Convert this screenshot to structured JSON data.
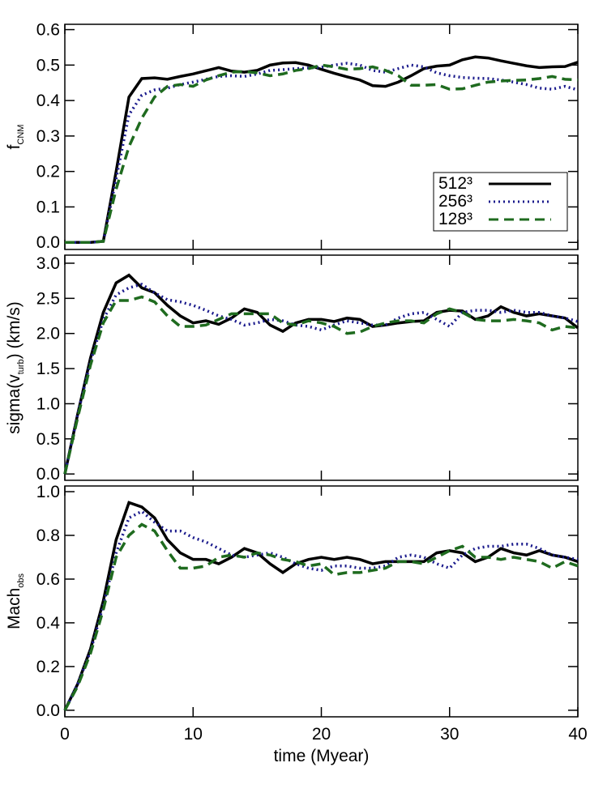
{
  "chart_data": [
    {
      "type": "line",
      "ylabel": {
        "text": "f",
        "sub": "CNM"
      },
      "x": [
        0,
        1,
        2,
        3,
        4,
        5,
        6,
        7,
        8,
        9,
        10,
        11,
        12,
        13,
        14,
        15,
        16,
        17,
        18,
        19,
        20,
        21,
        22,
        23,
        24,
        25,
        26,
        27,
        28,
        29,
        30,
        31,
        32,
        33,
        34,
        35,
        36,
        37,
        38,
        39,
        40
      ],
      "xlim": [
        0,
        40
      ],
      "ylim": [
        -0.02,
        0.615
      ],
      "yticks": [
        {
          "value": 0,
          "label": "0.0"
        },
        {
          "value": 0.1,
          "label": "0.1"
        },
        {
          "value": 0.2,
          "label": "0.2"
        },
        {
          "value": 0.3,
          "label": "0.3"
        },
        {
          "value": 0.4,
          "label": "0.4"
        },
        {
          "value": 0.5,
          "label": "0.5"
        },
        {
          "value": 0.6,
          "label": "0.6"
        }
      ],
      "legend": "lower right",
      "series": [
        {
          "name": "512³",
          "color": "#000000",
          "dash": "solid",
          "values": [
            0,
            0,
            0,
            0.003,
            0.2,
            0.41,
            0.462,
            0.464,
            0.46,
            0.468,
            0.475,
            0.484,
            0.493,
            0.483,
            0.48,
            0.485,
            0.5,
            0.506,
            0.507,
            0.5,
            0.488,
            0.477,
            0.467,
            0.458,
            0.442,
            0.44,
            0.452,
            0.47,
            0.49,
            0.497,
            0.5,
            0.515,
            0.523,
            0.52,
            0.512,
            0.505,
            0.498,
            0.493,
            0.495,
            0.496,
            0.508
          ]
        },
        {
          "name": "256³",
          "color": "#1a1a8c",
          "dash": "dotted",
          "values": [
            0,
            0,
            0,
            0.003,
            0.18,
            0.36,
            0.415,
            0.43,
            0.435,
            0.445,
            0.452,
            0.46,
            0.468,
            0.47,
            0.468,
            0.475,
            0.485,
            0.487,
            0.49,
            0.492,
            0.494,
            0.5,
            0.505,
            0.5,
            0.485,
            0.48,
            0.49,
            0.5,
            0.495,
            0.478,
            0.47,
            0.465,
            0.463,
            0.462,
            0.458,
            0.452,
            0.445,
            0.435,
            0.432,
            0.44,
            0.43
          ]
        },
        {
          "name": "128³",
          "color": "#1f6b1f",
          "dash": "dashed",
          "values": [
            0,
            0,
            0,
            0.003,
            0.15,
            0.27,
            0.35,
            0.41,
            0.44,
            0.445,
            0.44,
            0.458,
            0.47,
            0.48,
            0.482,
            0.478,
            0.47,
            0.475,
            0.485,
            0.49,
            0.5,
            0.495,
            0.488,
            0.49,
            0.495,
            0.485,
            0.47,
            0.443,
            0.443,
            0.445,
            0.432,
            0.433,
            0.443,
            0.452,
            0.455,
            0.457,
            0.458,
            0.462,
            0.468,
            0.46,
            0.458
          ]
        }
      ]
    },
    {
      "type": "line",
      "ylabel": {
        "text": "sigma(v",
        "sub": "turb",
        "after": ") (km/s)"
      },
      "x": [
        0,
        1,
        2,
        3,
        4,
        5,
        6,
        7,
        8,
        9,
        10,
        11,
        12,
        13,
        14,
        15,
        16,
        17,
        18,
        19,
        20,
        21,
        22,
        23,
        24,
        25,
        26,
        27,
        28,
        29,
        30,
        31,
        32,
        33,
        34,
        35,
        36,
        37,
        38,
        39,
        40
      ],
      "xlim": [
        0,
        40
      ],
      "ylim": [
        -0.09,
        3.115
      ],
      "yticks": [
        {
          "value": 0,
          "label": "0.0"
        },
        {
          "value": 0.5,
          "label": "0.5"
        },
        {
          "value": 1,
          "label": "1.0"
        },
        {
          "value": 1.5,
          "label": "1.5"
        },
        {
          "value": 2,
          "label": "2.0"
        },
        {
          "value": 2.5,
          "label": "2.5"
        },
        {
          "value": 3,
          "label": "3.0"
        }
      ],
      "series": [
        {
          "color": "#000000",
          "dash": "solid",
          "values": [
            0,
            0.85,
            1.65,
            2.3,
            2.72,
            2.83,
            2.65,
            2.58,
            2.4,
            2.25,
            2.15,
            2.18,
            2.13,
            2.22,
            2.35,
            2.3,
            2.12,
            2.03,
            2.15,
            2.2,
            2.2,
            2.17,
            2.22,
            2.2,
            2.1,
            2.12,
            2.15,
            2.17,
            2.18,
            2.3,
            2.33,
            2.32,
            2.2,
            2.25,
            2.38,
            2.3,
            2.25,
            2.28,
            2.25,
            2.22,
            2.08
          ]
        },
        {
          "color": "#1a1a8c",
          "dash": "dotted",
          "values": [
            0,
            0.85,
            1.6,
            2.2,
            2.55,
            2.65,
            2.7,
            2.58,
            2.48,
            2.45,
            2.4,
            2.33,
            2.25,
            2.2,
            2.12,
            2.15,
            2.2,
            2.18,
            2.12,
            2.1,
            2.05,
            2.12,
            2.18,
            2.15,
            2.12,
            2.12,
            2.22,
            2.28,
            2.3,
            2.2,
            2.1,
            2.3,
            2.33,
            2.33,
            2.3,
            2.33,
            2.3,
            2.3,
            2.25,
            2.22,
            2.17
          ]
        },
        {
          "color": "#1f6b1f",
          "dash": "dashed",
          "values": [
            0,
            0.8,
            1.55,
            2.15,
            2.47,
            2.47,
            2.52,
            2.45,
            2.25,
            2.1,
            2.1,
            2.12,
            2.2,
            2.28,
            2.28,
            2.28,
            2.28,
            2.15,
            2.12,
            2.18,
            2.15,
            2.1,
            2.0,
            2.02,
            2.1,
            2.15,
            2.18,
            2.18,
            2.15,
            2.28,
            2.35,
            2.3,
            2.2,
            2.18,
            2.18,
            2.2,
            2.18,
            2.15,
            2.05,
            2.1,
            2.08
          ]
        }
      ]
    },
    {
      "type": "line",
      "ylabel": {
        "text": "Mach",
        "sub": "obs"
      },
      "xlabel": "time (Myear)",
      "x": [
        0,
        1,
        2,
        3,
        4,
        5,
        6,
        7,
        8,
        9,
        10,
        11,
        12,
        13,
        14,
        15,
        16,
        17,
        18,
        19,
        20,
        21,
        22,
        23,
        24,
        25,
        26,
        27,
        28,
        29,
        30,
        31,
        32,
        33,
        34,
        35,
        36,
        37,
        38,
        39,
        40
      ],
      "xlim": [
        0,
        40
      ],
      "xticks": [
        0,
        10,
        20,
        30,
        40
      ],
      "ylim": [
        -0.03,
        1.026
      ],
      "yticks": [
        {
          "value": 0,
          "label": "0.0"
        },
        {
          "value": 0.2,
          "label": "0.2"
        },
        {
          "value": 0.4,
          "label": "0.4"
        },
        {
          "value": 0.6,
          "label": "0.6"
        },
        {
          "value": 0.8,
          "label": "0.8"
        },
        {
          "value": 1,
          "label": "1.0"
        }
      ],
      "series": [
        {
          "color": "#000000",
          "dash": "solid",
          "values": [
            0,
            0.12,
            0.28,
            0.5,
            0.78,
            0.95,
            0.93,
            0.88,
            0.78,
            0.72,
            0.69,
            0.69,
            0.67,
            0.7,
            0.74,
            0.72,
            0.67,
            0.63,
            0.67,
            0.69,
            0.7,
            0.69,
            0.7,
            0.69,
            0.67,
            0.68,
            0.68,
            0.68,
            0.68,
            0.72,
            0.73,
            0.72,
            0.68,
            0.7,
            0.74,
            0.72,
            0.71,
            0.73,
            0.71,
            0.7,
            0.68
          ]
        },
        {
          "color": "#1a1a8c",
          "dash": "dotted",
          "values": [
            0,
            0.12,
            0.27,
            0.48,
            0.72,
            0.88,
            0.91,
            0.86,
            0.82,
            0.82,
            0.79,
            0.77,
            0.74,
            0.71,
            0.7,
            0.71,
            0.72,
            0.7,
            0.67,
            0.65,
            0.64,
            0.66,
            0.66,
            0.65,
            0.65,
            0.66,
            0.7,
            0.71,
            0.7,
            0.67,
            0.65,
            0.71,
            0.74,
            0.75,
            0.75,
            0.76,
            0.76,
            0.74,
            0.71,
            0.7,
            0.69
          ]
        },
        {
          "color": "#1f6b1f",
          "dash": "dashed",
          "values": [
            0,
            0.11,
            0.26,
            0.46,
            0.7,
            0.8,
            0.85,
            0.82,
            0.73,
            0.65,
            0.65,
            0.66,
            0.7,
            0.71,
            0.7,
            0.72,
            0.71,
            0.69,
            0.68,
            0.66,
            0.67,
            0.62,
            0.63,
            0.63,
            0.64,
            0.65,
            0.68,
            0.68,
            0.67,
            0.7,
            0.73,
            0.75,
            0.7,
            0.7,
            0.69,
            0.7,
            0.69,
            0.68,
            0.65,
            0.68,
            0.66
          ]
        }
      ]
    }
  ]
}
